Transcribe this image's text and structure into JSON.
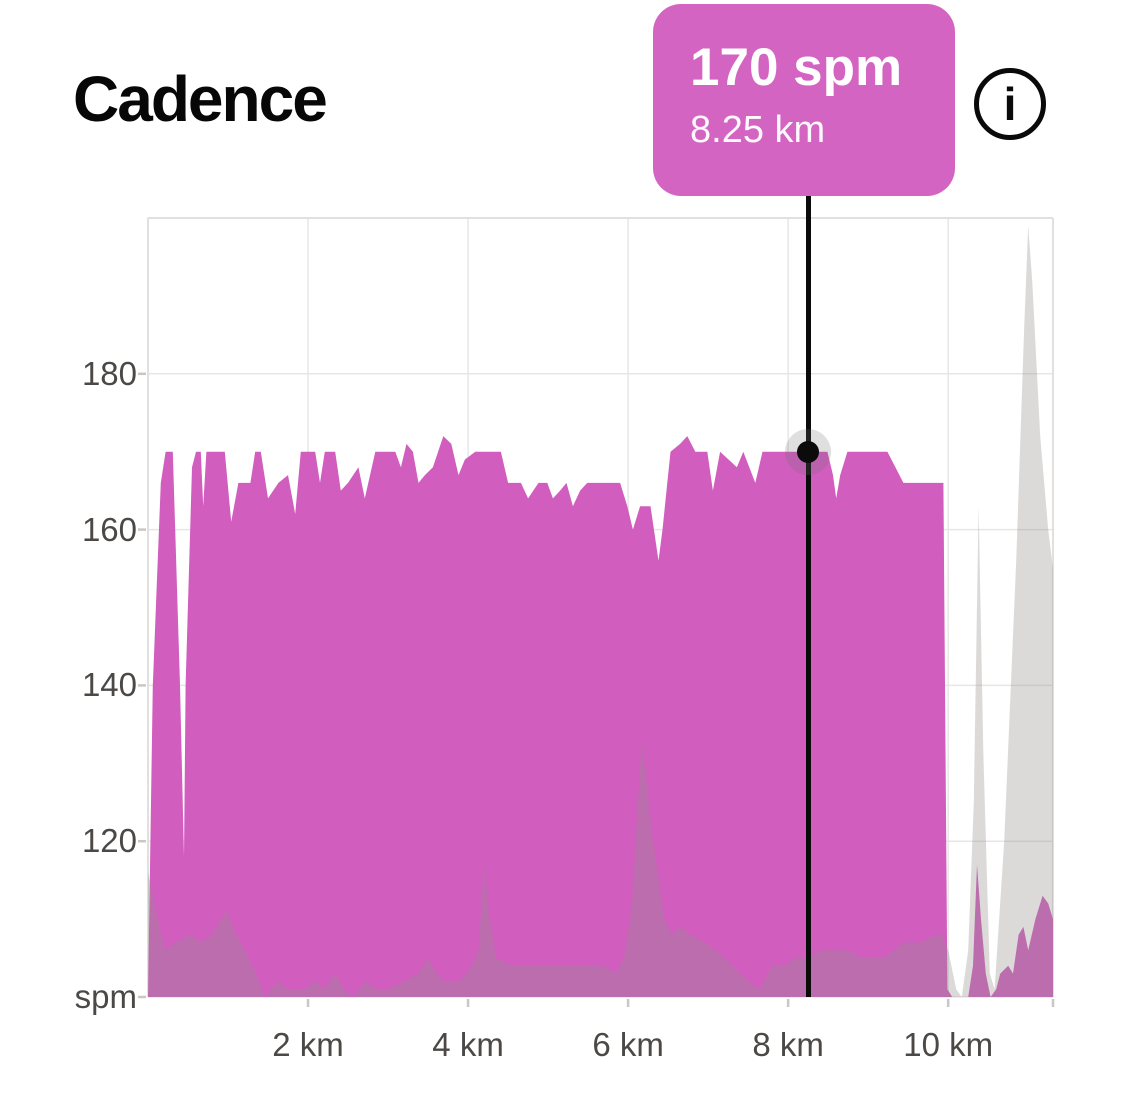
{
  "header": {
    "title": "Cadence",
    "info_icon": "i"
  },
  "tooltip": {
    "value": "170 spm",
    "distance": "8.25 km"
  },
  "chart_data": {
    "type": "area",
    "title": "Cadence",
    "x_unit": "km",
    "y_unit_label": "spm",
    "x_range": [
      0,
      11.31
    ],
    "y_range": [
      100,
      200
    ],
    "grid": true,
    "x_ticks": [
      {
        "km": 2,
        "label": "2 km"
      },
      {
        "km": 4,
        "label": "4 km"
      },
      {
        "km": 6,
        "label": "6 km"
      },
      {
        "km": 8,
        "label": "8 km"
      },
      {
        "km": 10,
        "label": "10 km"
      }
    ],
    "y_ticks": [
      {
        "value": 180,
        "label": "180"
      },
      {
        "value": 160,
        "label": "160"
      },
      {
        "value": 140,
        "label": "140"
      },
      {
        "value": 120,
        "label": "120"
      }
    ],
    "colors": {
      "cadence_area": "#D15DBE",
      "elevation_overlay": "rgba(145,142,140,0.33)",
      "tooltip_bg": "#D464C2",
      "cursor": "#0B0B0B",
      "gridline": "#E8E6E5",
      "border": "#E2E0DF",
      "tick": "#C9C7C5",
      "axis_text": "#4B4845"
    },
    "cursor": {
      "km": 8.25,
      "value": 170
    },
    "series": [
      {
        "name": "cadence",
        "unit": "spm",
        "points": [
          [
            0.0,
            100
          ],
          [
            0.06,
            140
          ],
          [
            0.16,
            166
          ],
          [
            0.22,
            170
          ],
          [
            0.31,
            170
          ],
          [
            0.4,
            140
          ],
          [
            0.45,
            118
          ],
          [
            0.47,
            140
          ],
          [
            0.55,
            168
          ],
          [
            0.6,
            170
          ],
          [
            0.66,
            170
          ],
          [
            0.69,
            163
          ],
          [
            0.73,
            170
          ],
          [
            0.78,
            170
          ],
          [
            0.96,
            170
          ],
          [
            1.04,
            161
          ],
          [
            1.13,
            166
          ],
          [
            1.28,
            166
          ],
          [
            1.34,
            170
          ],
          [
            1.41,
            170
          ],
          [
            1.5,
            164
          ],
          [
            1.63,
            166
          ],
          [
            1.75,
            167
          ],
          [
            1.84,
            162
          ],
          [
            1.91,
            170
          ],
          [
            2.09,
            170
          ],
          [
            2.15,
            166
          ],
          [
            2.21,
            170
          ],
          [
            2.34,
            170
          ],
          [
            2.41,
            165
          ],
          [
            2.5,
            166
          ],
          [
            2.63,
            168
          ],
          [
            2.71,
            164
          ],
          [
            2.84,
            170
          ],
          [
            3.09,
            170
          ],
          [
            3.16,
            168
          ],
          [
            3.23,
            171
          ],
          [
            3.31,
            170
          ],
          [
            3.38,
            166
          ],
          [
            3.46,
            167
          ],
          [
            3.56,
            168
          ],
          [
            3.69,
            172
          ],
          [
            3.79,
            171
          ],
          [
            3.88,
            167
          ],
          [
            3.96,
            169
          ],
          [
            4.09,
            170
          ],
          [
            4.41,
            170
          ],
          [
            4.5,
            166
          ],
          [
            4.66,
            166
          ],
          [
            4.75,
            164
          ],
          [
            4.88,
            166
          ],
          [
            4.99,
            166
          ],
          [
            5.06,
            164
          ],
          [
            5.15,
            165
          ],
          [
            5.23,
            166
          ],
          [
            5.31,
            163
          ],
          [
            5.4,
            165
          ],
          [
            5.49,
            166
          ],
          [
            5.9,
            166
          ],
          [
            5.99,
            163
          ],
          [
            6.06,
            160
          ],
          [
            6.15,
            163
          ],
          [
            6.28,
            163
          ],
          [
            6.38,
            156
          ],
          [
            6.43,
            160
          ],
          [
            6.53,
            170
          ],
          [
            6.65,
            171
          ],
          [
            6.74,
            172
          ],
          [
            6.84,
            170
          ],
          [
            6.99,
            170
          ],
          [
            7.06,
            165
          ],
          [
            7.15,
            170
          ],
          [
            7.36,
            168
          ],
          [
            7.44,
            170
          ],
          [
            7.59,
            166
          ],
          [
            7.68,
            170
          ],
          [
            8.03,
            170
          ],
          [
            8.25,
            170
          ],
          [
            8.49,
            170
          ],
          [
            8.56,
            167
          ],
          [
            8.6,
            164
          ],
          [
            8.65,
            167
          ],
          [
            8.74,
            170
          ],
          [
            9.24,
            170
          ],
          [
            9.34,
            168
          ],
          [
            9.44,
            166
          ],
          [
            9.94,
            166
          ],
          [
            9.99,
            101
          ],
          [
            10.05,
            100
          ],
          [
            10.25,
            100
          ],
          [
            10.31,
            104
          ],
          [
            10.36,
            117
          ],
          [
            10.41,
            110
          ],
          [
            10.47,
            103
          ],
          [
            10.53,
            100
          ],
          [
            10.6,
            101
          ],
          [
            10.65,
            103
          ],
          [
            10.75,
            104
          ],
          [
            10.81,
            103
          ],
          [
            10.88,
            108
          ],
          [
            10.94,
            109
          ],
          [
            11.0,
            106
          ],
          [
            11.09,
            110
          ],
          [
            11.18,
            113
          ],
          [
            11.25,
            112
          ],
          [
            11.31,
            110
          ]
        ]
      },
      {
        "name": "elevation-overlay",
        "points": [
          [
            0.0,
            116
          ],
          [
            0.08,
            112
          ],
          [
            0.21,
            106
          ],
          [
            0.35,
            107
          ],
          [
            0.54,
            108
          ],
          [
            0.66,
            107
          ],
          [
            0.8,
            108
          ],
          [
            0.98,
            111
          ],
          [
            1.1,
            108
          ],
          [
            1.21,
            106
          ],
          [
            1.35,
            103
          ],
          [
            1.46,
            100
          ],
          [
            1.62,
            102
          ],
          [
            1.75,
            101
          ],
          [
            1.95,
            101
          ],
          [
            2.09,
            102
          ],
          [
            2.2,
            101
          ],
          [
            2.34,
            103
          ],
          [
            2.45,
            101
          ],
          [
            2.56,
            100
          ],
          [
            2.72,
            102
          ],
          [
            2.85,
            101
          ],
          [
            3.0,
            101
          ],
          [
            3.2,
            102
          ],
          [
            3.38,
            103
          ],
          [
            3.5,
            105
          ],
          [
            3.6,
            103
          ],
          [
            3.71,
            102
          ],
          [
            3.9,
            102
          ],
          [
            4.05,
            104
          ],
          [
            4.13,
            106
          ],
          [
            4.2,
            117
          ],
          [
            4.27,
            110
          ],
          [
            4.35,
            105
          ],
          [
            4.55,
            104
          ],
          [
            4.8,
            104
          ],
          [
            5.1,
            104
          ],
          [
            5.4,
            104
          ],
          [
            5.7,
            104
          ],
          [
            5.85,
            103
          ],
          [
            5.95,
            105
          ],
          [
            6.05,
            112
          ],
          [
            6.17,
            133
          ],
          [
            6.3,
            121
          ],
          [
            6.45,
            110
          ],
          [
            6.55,
            108
          ],
          [
            6.65,
            109
          ],
          [
            6.78,
            108
          ],
          [
            6.95,
            107
          ],
          [
            7.1,
            106
          ],
          [
            7.3,
            104
          ],
          [
            7.5,
            102
          ],
          [
            7.65,
            101
          ],
          [
            7.8,
            104
          ],
          [
            7.95,
            104
          ],
          [
            8.1,
            105
          ],
          [
            8.25,
            105
          ],
          [
            8.4,
            106
          ],
          [
            8.6,
            106
          ],
          [
            8.75,
            106
          ],
          [
            8.9,
            105
          ],
          [
            9.05,
            105
          ],
          [
            9.2,
            105
          ],
          [
            9.45,
            107
          ],
          [
            9.65,
            107
          ],
          [
            9.85,
            108
          ],
          [
            9.92,
            108
          ],
          [
            10.0,
            106
          ],
          [
            10.1,
            101
          ],
          [
            10.17,
            100
          ],
          [
            10.25,
            106
          ],
          [
            10.32,
            125
          ],
          [
            10.38,
            163
          ],
          [
            10.44,
            131
          ],
          [
            10.52,
            103
          ],
          [
            10.58,
            101
          ],
          [
            10.7,
            120
          ],
          [
            10.85,
            156
          ],
          [
            10.95,
            186
          ],
          [
            11.0,
            199
          ],
          [
            11.05,
            192
          ],
          [
            11.15,
            172
          ],
          [
            11.25,
            160
          ],
          [
            11.31,
            155
          ]
        ]
      }
    ]
  }
}
